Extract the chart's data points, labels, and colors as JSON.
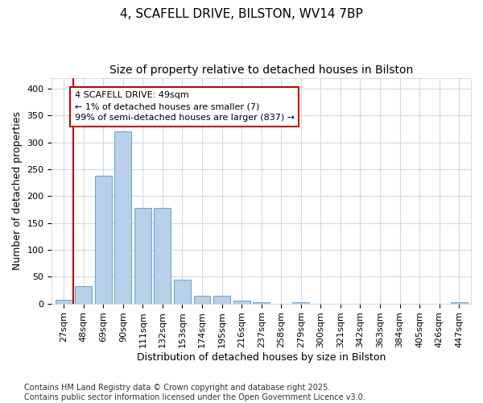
{
  "title1": "4, SCAFELL DRIVE, BILSTON, WV14 7BP",
  "title2": "Size of property relative to detached houses in Bilston",
  "xlabel": "Distribution of detached houses by size in Bilston",
  "ylabel": "Number of detached properties",
  "categories": [
    "27sqm",
    "48sqm",
    "69sqm",
    "90sqm",
    "111sqm",
    "132sqm",
    "153sqm",
    "174sqm",
    "195sqm",
    "216sqm",
    "237sqm",
    "258sqm",
    "279sqm",
    "300sqm",
    "321sqm",
    "342sqm",
    "363sqm",
    "384sqm",
    "405sqm",
    "426sqm",
    "447sqm"
  ],
  "values": [
    7,
    32,
    238,
    320,
    178,
    178,
    45,
    15,
    15,
    5,
    2,
    0,
    3,
    0,
    0,
    0,
    0,
    0,
    0,
    0,
    2
  ],
  "bar_color": "#b8d0e8",
  "bar_edge_color": "#6aaad4",
  "vline_color": "#cc0000",
  "annotation_text": "4 SCAFELL DRIVE: 49sqm\n← 1% of detached houses are smaller (7)\n99% of semi-detached houses are larger (837) →",
  "annotation_box_color": "#ffffff",
  "annotation_box_edge": "#cc0000",
  "ylim": [
    0,
    420
  ],
  "yticks": [
    0,
    50,
    100,
    150,
    200,
    250,
    300,
    350,
    400
  ],
  "bg_color": "#ffffff",
  "plot_bg_color": "#ffffff",
  "grid_color": "#d0d8e8",
  "footer_text": "Contains HM Land Registry data © Crown copyright and database right 2025.\nContains public sector information licensed under the Open Government Licence v3.0.",
  "title_fontsize": 11,
  "subtitle_fontsize": 10,
  "tick_fontsize": 8,
  "label_fontsize": 9,
  "footer_fontsize": 7
}
